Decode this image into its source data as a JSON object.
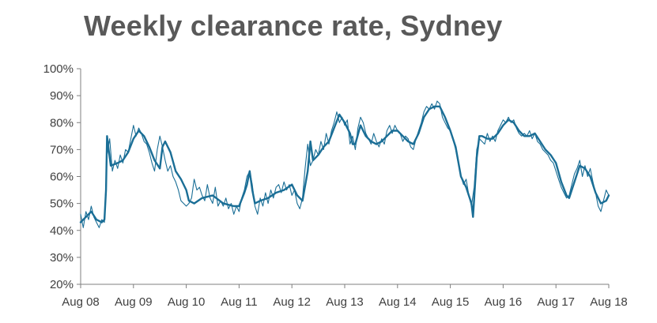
{
  "chart_data": {
    "type": "line",
    "title": "Weekly clearance rate, Sydney",
    "xlabel": "",
    "ylabel": "",
    "ylim": [
      20,
      100
    ],
    "yticks": [
      "20%",
      "30%",
      "40%",
      "50%",
      "60%",
      "70%",
      "80%",
      "90%",
      "100%"
    ],
    "xticks": [
      "Aug 08",
      "Aug 09",
      "Aug 10",
      "Aug 11",
      "Aug 12",
      "Aug 13",
      "Aug 14",
      "Aug 15",
      "Aug 16",
      "Aug 17",
      "Aug 18"
    ],
    "x_unit": "years since Aug 08",
    "grid": false,
    "legend": "none",
    "colors": {
      "series": "#1a6e96",
      "axis": "#7f7f7f",
      "title": "#595959"
    },
    "series": [
      {
        "style": "thin",
        "points": [
          [
            0.0,
            46
          ],
          [
            0.05,
            41
          ],
          [
            0.1,
            47
          ],
          [
            0.15,
            44
          ],
          [
            0.2,
            49
          ],
          [
            0.25,
            45
          ],
          [
            0.3,
            43
          ],
          [
            0.35,
            41
          ],
          [
            0.4,
            44
          ],
          [
            0.45,
            43
          ],
          [
            0.5,
            68
          ],
          [
            0.55,
            74
          ],
          [
            0.6,
            62
          ],
          [
            0.65,
            66
          ],
          [
            0.7,
            63
          ],
          [
            0.75,
            68
          ],
          [
            0.8,
            65
          ],
          [
            0.85,
            70
          ],
          [
            0.9,
            69
          ],
          [
            0.95,
            74
          ],
          [
            1.0,
            79
          ],
          [
            1.05,
            75
          ],
          [
            1.1,
            78
          ],
          [
            1.15,
            76
          ],
          [
            1.2,
            73
          ],
          [
            1.25,
            72
          ],
          [
            1.3,
            69
          ],
          [
            1.35,
            65
          ],
          [
            1.4,
            62
          ],
          [
            1.45,
            70
          ],
          [
            1.5,
            75
          ],
          [
            1.55,
            71
          ],
          [
            1.6,
            66
          ],
          [
            1.65,
            62
          ],
          [
            1.7,
            64
          ],
          [
            1.75,
            60
          ],
          [
            1.8,
            58
          ],
          [
            1.85,
            55
          ],
          [
            1.9,
            51
          ],
          [
            1.95,
            50
          ],
          [
            2.0,
            49
          ],
          [
            2.05,
            50
          ],
          [
            2.1,
            52
          ],
          [
            2.15,
            59
          ],
          [
            2.2,
            55
          ],
          [
            2.25,
            56
          ],
          [
            2.3,
            53
          ],
          [
            2.35,
            51
          ],
          [
            2.4,
            57
          ],
          [
            2.45,
            52
          ],
          [
            2.5,
            50
          ],
          [
            2.55,
            56
          ],
          [
            2.6,
            49
          ],
          [
            2.65,
            51
          ],
          [
            2.7,
            49
          ],
          [
            2.75,
            52
          ],
          [
            2.8,
            48
          ],
          [
            2.85,
            50
          ],
          [
            2.9,
            46
          ],
          [
            2.95,
            49
          ],
          [
            3.0,
            47
          ],
          [
            3.05,
            52
          ],
          [
            3.1,
            55
          ],
          [
            3.15,
            60
          ],
          [
            3.2,
            62
          ],
          [
            3.25,
            57
          ],
          [
            3.3,
            49
          ],
          [
            3.35,
            46
          ],
          [
            3.4,
            52
          ],
          [
            3.45,
            49
          ],
          [
            3.5,
            54
          ],
          [
            3.55,
            50
          ],
          [
            3.6,
            55
          ],
          [
            3.65,
            52
          ],
          [
            3.7,
            56
          ],
          [
            3.75,
            57
          ],
          [
            3.8,
            54
          ],
          [
            3.85,
            58
          ],
          [
            3.9,
            55
          ],
          [
            3.95,
            57
          ],
          [
            4.0,
            53
          ],
          [
            4.05,
            55
          ],
          [
            4.1,
            50
          ],
          [
            4.15,
            48
          ],
          [
            4.2,
            52
          ],
          [
            4.25,
            63
          ],
          [
            4.3,
            72
          ],
          [
            4.35,
            64
          ],
          [
            4.4,
            66
          ],
          [
            4.45,
            70
          ],
          [
            4.5,
            68
          ],
          [
            4.55,
            73
          ],
          [
            4.6,
            70
          ],
          [
            4.65,
            76
          ],
          [
            4.7,
            72
          ],
          [
            4.75,
            77
          ],
          [
            4.8,
            80
          ],
          [
            4.85,
            84
          ],
          [
            4.9,
            80
          ],
          [
            4.95,
            82
          ],
          [
            5.0,
            79
          ],
          [
            5.05,
            81
          ],
          [
            5.1,
            72
          ],
          [
            5.15,
            75
          ],
          [
            5.2,
            70
          ],
          [
            5.25,
            78
          ],
          [
            5.3,
            82
          ],
          [
            5.35,
            80
          ],
          [
            5.4,
            76
          ],
          [
            5.45,
            74
          ],
          [
            5.5,
            72
          ],
          [
            5.55,
            76
          ],
          [
            5.6,
            73
          ],
          [
            5.65,
            71
          ],
          [
            5.7,
            74
          ],
          [
            5.75,
            72
          ],
          [
            5.8,
            77
          ],
          [
            5.85,
            79
          ],
          [
            5.9,
            76
          ],
          [
            5.95,
            79
          ],
          [
            6.0,
            77
          ],
          [
            6.05,
            76
          ],
          [
            6.1,
            73
          ],
          [
            6.15,
            75
          ],
          [
            6.2,
            74
          ],
          [
            6.25,
            71
          ],
          [
            6.3,
            70
          ],
          [
            6.35,
            74
          ],
          [
            6.4,
            77
          ],
          [
            6.45,
            80
          ],
          [
            6.5,
            84
          ],
          [
            6.55,
            86
          ],
          [
            6.6,
            85
          ],
          [
            6.65,
            87
          ],
          [
            6.7,
            85
          ],
          [
            6.75,
            88
          ],
          [
            6.8,
            87
          ],
          [
            6.85,
            82
          ],
          [
            6.9,
            80
          ],
          [
            6.95,
            78
          ],
          [
            7.0,
            77
          ],
          [
            7.05,
            74
          ],
          [
            7.1,
            70
          ],
          [
            7.15,
            65
          ],
          [
            7.2,
            60
          ],
          [
            7.25,
            57
          ],
          [
            7.3,
            59
          ],
          [
            7.35,
            53
          ],
          [
            7.4,
            49
          ],
          [
            7.45,
            56
          ],
          [
            7.5,
            70
          ],
          [
            7.55,
            74
          ],
          [
            7.6,
            73
          ],
          [
            7.65,
            72
          ],
          [
            7.7,
            76
          ],
          [
            7.75,
            73
          ],
          [
            7.8,
            75
          ],
          [
            7.85,
            73
          ],
          [
            7.9,
            77
          ],
          [
            7.95,
            79
          ],
          [
            8.0,
            81
          ],
          [
            8.05,
            80
          ],
          [
            8.1,
            82
          ],
          [
            8.15,
            80
          ],
          [
            8.2,
            81
          ],
          [
            8.25,
            78
          ],
          [
            8.3,
            76
          ],
          [
            8.35,
            75
          ],
          [
            8.4,
            76
          ],
          [
            8.45,
            75
          ],
          [
            8.5,
            77
          ],
          [
            8.55,
            74
          ],
          [
            8.6,
            76
          ],
          [
            8.65,
            73
          ],
          [
            8.7,
            72
          ],
          [
            8.75,
            70
          ],
          [
            8.8,
            69
          ],
          [
            8.85,
            68
          ],
          [
            8.9,
            66
          ],
          [
            8.95,
            65
          ],
          [
            9.0,
            62
          ],
          [
            9.05,
            59
          ],
          [
            9.1,
            56
          ],
          [
            9.15,
            54
          ],
          [
            9.2,
            52
          ],
          [
            9.25,
            53
          ],
          [
            9.3,
            57
          ],
          [
            9.35,
            61
          ],
          [
            9.4,
            63
          ],
          [
            9.45,
            66
          ],
          [
            9.5,
            60
          ],
          [
            9.55,
            64
          ],
          [
            9.6,
            60
          ],
          [
            9.65,
            63
          ],
          [
            9.7,
            58
          ],
          [
            9.75,
            54
          ],
          [
            9.8,
            49
          ],
          [
            9.85,
            47
          ],
          [
            9.9,
            51
          ],
          [
            9.95,
            55
          ],
          [
            10.0,
            53
          ]
        ]
      },
      {
        "style": "thick",
        "points": [
          [
            0.0,
            43
          ],
          [
            0.1,
            45
          ],
          [
            0.2,
            47
          ],
          [
            0.3,
            44
          ],
          [
            0.4,
            43
          ],
          [
            0.45,
            44
          ],
          [
            0.48,
            55
          ],
          [
            0.5,
            75
          ],
          [
            0.53,
            70
          ],
          [
            0.57,
            64
          ],
          [
            0.7,
            65
          ],
          [
            0.8,
            66
          ],
          [
            0.9,
            69
          ],
          [
            1.0,
            74
          ],
          [
            1.1,
            77
          ],
          [
            1.2,
            75
          ],
          [
            1.3,
            71
          ],
          [
            1.4,
            66
          ],
          [
            1.5,
            63
          ],
          [
            1.55,
            71
          ],
          [
            1.6,
            73
          ],
          [
            1.7,
            69
          ],
          [
            1.8,
            62
          ],
          [
            1.9,
            59
          ],
          [
            2.0,
            55
          ],
          [
            2.05,
            51
          ],
          [
            2.15,
            50
          ],
          [
            2.3,
            52
          ],
          [
            2.5,
            53
          ],
          [
            2.7,
            50
          ],
          [
            2.9,
            49
          ],
          [
            3.0,
            49
          ],
          [
            3.1,
            54
          ],
          [
            3.15,
            57
          ],
          [
            3.2,
            62
          ],
          [
            3.25,
            55
          ],
          [
            3.3,
            50
          ],
          [
            3.4,
            51
          ],
          [
            3.55,
            52
          ],
          [
            3.7,
            54
          ],
          [
            3.85,
            55
          ],
          [
            4.0,
            57
          ],
          [
            4.1,
            53
          ],
          [
            4.2,
            51
          ],
          [
            4.3,
            62
          ],
          [
            4.35,
            73
          ],
          [
            4.4,
            66
          ],
          [
            4.5,
            68
          ],
          [
            4.6,
            71
          ],
          [
            4.7,
            73
          ],
          [
            4.8,
            78
          ],
          [
            4.9,
            83
          ],
          [
            5.0,
            80
          ],
          [
            5.1,
            76
          ],
          [
            5.15,
            72
          ],
          [
            5.2,
            72
          ],
          [
            5.3,
            79
          ],
          [
            5.4,
            75
          ],
          [
            5.5,
            73
          ],
          [
            5.6,
            72
          ],
          [
            5.7,
            73
          ],
          [
            5.8,
            75
          ],
          [
            5.9,
            77
          ],
          [
            6.0,
            77
          ],
          [
            6.1,
            75
          ],
          [
            6.2,
            73
          ],
          [
            6.3,
            72
          ],
          [
            6.4,
            76
          ],
          [
            6.5,
            82
          ],
          [
            6.6,
            85
          ],
          [
            6.7,
            86
          ],
          [
            6.8,
            86
          ],
          [
            6.9,
            82
          ],
          [
            7.0,
            77
          ],
          [
            7.1,
            71
          ],
          [
            7.2,
            60
          ],
          [
            7.3,
            56
          ],
          [
            7.4,
            50
          ],
          [
            7.43,
            45
          ],
          [
            7.5,
            67
          ],
          [
            7.55,
            75
          ],
          [
            7.6,
            75
          ],
          [
            7.7,
            74
          ],
          [
            7.8,
            74
          ],
          [
            7.9,
            76
          ],
          [
            8.0,
            79
          ],
          [
            8.1,
            81
          ],
          [
            8.2,
            80
          ],
          [
            8.3,
            77
          ],
          [
            8.4,
            75
          ],
          [
            8.5,
            75
          ],
          [
            8.6,
            76
          ],
          [
            8.7,
            73
          ],
          [
            8.8,
            70
          ],
          [
            8.9,
            68
          ],
          [
            9.0,
            65
          ],
          [
            9.1,
            58
          ],
          [
            9.2,
            53
          ],
          [
            9.25,
            52
          ],
          [
            9.35,
            58
          ],
          [
            9.45,
            64
          ],
          [
            9.55,
            63
          ],
          [
            9.65,
            60
          ],
          [
            9.75,
            54
          ],
          [
            9.85,
            50
          ],
          [
            9.95,
            51
          ],
          [
            10.0,
            53
          ]
        ]
      }
    ]
  }
}
